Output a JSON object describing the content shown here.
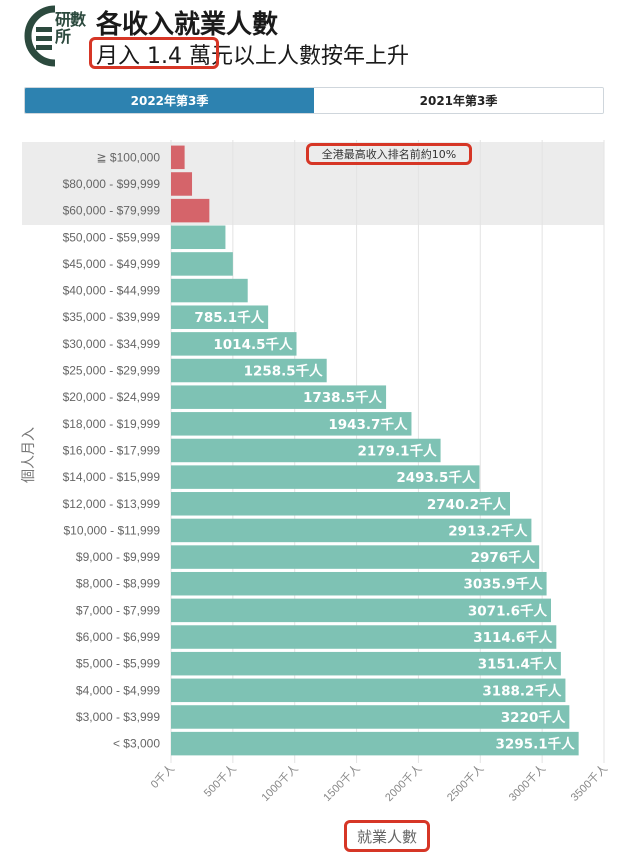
{
  "header": {
    "logo_text": "研數所",
    "title": "各收入就業人數",
    "subtitle": "月入 1.4 萬元以上人數按年上升"
  },
  "tabs": [
    {
      "label": "2022年第3季",
      "active": true
    },
    {
      "label": "2021年第3季",
      "active": false
    }
  ],
  "annotation": "全港最高收入排名前約10%",
  "colors": {
    "bar_default": "#7ec2b4",
    "bar_top": "#d5646a",
    "highlight_band": "#ececec",
    "tab_active": "#2d82b0",
    "annotation_border": "#d63626"
  },
  "chart_data": {
    "type": "bar",
    "orientation": "horizontal",
    "xlabel": "就業人數",
    "ylabel": "個人月入",
    "xlim": [
      0,
      3500
    ],
    "xticks": [
      "0千人",
      "500千人",
      "1000千人",
      "1500千人",
      "2000千人",
      "2500千人",
      "3000千人",
      "3500千人"
    ],
    "grid": true,
    "highlighted_categories": [
      "≧ $100,000",
      "$80,000 - $99,999",
      "$60,000 - $79,999"
    ],
    "categories": [
      "≧ $100,000",
      "$80,000 - $99,999",
      "$60,000 - $79,999",
      "$50,000 - $59,999",
      "$45,000 - $49,999",
      "$40,000 - $44,999",
      "$35,000 - $39,999",
      "$30,000 - $34,999",
      "$25,000 - $29,999",
      "$20,000 - $24,999",
      "$18,000 - $19,999",
      "$16,000 - $17,999",
      "$14,000 - $15,999",
      "$12,000 - $13,999",
      "$10,000 - $11,999",
      "$9,000 - $9,999",
      "$8,000 - $8,999",
      "$7,000 - $7,999",
      "$6,000 - $6,999",
      "$5,000 - $5,999",
      "$4,000 - $4,999",
      "$3,000 - $3,999",
      "< $3,000"
    ],
    "values": [
      110,
      170,
      310,
      440,
      500,
      620,
      785.1,
      1014.5,
      1258.5,
      1738.5,
      1943.7,
      2179.1,
      2493.5,
      2740.2,
      2913.2,
      2976,
      3035.9,
      3071.6,
      3114.6,
      3151.4,
      3188.2,
      3220,
      3295.1
    ],
    "data_labels": [
      "",
      "",
      "",
      "",
      "",
      "",
      "785.1千人",
      "1014.5千人",
      "1258.5千人",
      "1738.5千人",
      "1943.7千人",
      "2179.1千人",
      "2493.5千人",
      "2740.2千人",
      "2913.2千人",
      "2976千人",
      "3035.9千人",
      "3071.6千人",
      "3114.6千人",
      "3151.4千人",
      "3188.2千人",
      "3220千人",
      "3295.1千人"
    ]
  }
}
